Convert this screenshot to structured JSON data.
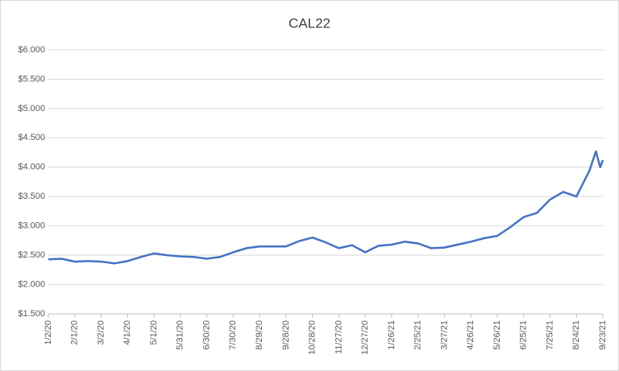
{
  "chart_data": {
    "type": "line",
    "title": "CAL22",
    "x": [
      "1/2/20",
      "1/17/20",
      "2/1/20",
      "2/16/20",
      "3/2/20",
      "3/17/20",
      "4/1/20",
      "4/16/20",
      "5/1/20",
      "5/16/20",
      "5/31/20",
      "6/15/20",
      "6/30/20",
      "7/15/20",
      "7/30/20",
      "8/14/20",
      "8/29/20",
      "9/13/20",
      "9/28/20",
      "10/13/20",
      "10/28/20",
      "11/12/20",
      "11/27/20",
      "12/12/20",
      "12/27/20",
      "1/11/21",
      "1/26/21",
      "2/10/21",
      "2/25/21",
      "3/12/21",
      "3/27/21",
      "4/11/21",
      "4/26/21",
      "5/11/21",
      "5/26/21",
      "6/10/21",
      "6/25/21",
      "7/10/21",
      "7/25/21",
      "8/9/21",
      "8/24/21",
      "9/8/21",
      "9/15/21",
      "9/20/21",
      "9/23/21"
    ],
    "values": [
      2.43,
      2.44,
      2.39,
      2.4,
      2.39,
      2.36,
      2.4,
      2.47,
      2.53,
      2.5,
      2.48,
      2.47,
      2.44,
      2.47,
      2.55,
      2.62,
      2.65,
      2.65,
      2.65,
      2.74,
      2.8,
      2.72,
      2.62,
      2.67,
      2.55,
      2.66,
      2.68,
      2.73,
      2.7,
      2.62,
      2.63,
      2.68,
      2.73,
      2.79,
      2.83,
      2.98,
      3.15,
      3.22,
      3.45,
      3.58,
      3.5,
      3.95,
      4.27,
      4.0,
      4.12
    ],
    "color": "#4472c4",
    "xlim": [
      "1/2/20",
      "9/23/21"
    ],
    "xticks": [
      "1/2/20",
      "2/1/20",
      "3/2/20",
      "4/1/20",
      "5/1/20",
      "5/31/20",
      "6/30/20",
      "7/30/20",
      "8/29/20",
      "9/28/20",
      "10/28/20",
      "11/27/20",
      "12/27/20",
      "1/26/21",
      "2/25/21",
      "3/27/21",
      "4/26/21",
      "5/26/21",
      "6/25/21",
      "7/25/21",
      "8/24/21",
      "9/23/21"
    ],
    "ylim": [
      1.5,
      6
    ],
    "yticks": [
      {
        "value": 1.5,
        "label": "$1.500"
      },
      {
        "value": 2,
        "label": "$2.000"
      },
      {
        "value": 2.5,
        "label": "$2.500"
      },
      {
        "value": 3,
        "label": "$3.000"
      },
      {
        "value": 3.5,
        "label": "$3.500"
      },
      {
        "value": 4,
        "label": "$4.000"
      },
      {
        "value": 4.5,
        "label": "$4.500"
      },
      {
        "value": 5,
        "label": "$5.000"
      },
      {
        "value": 5.5,
        "label": "$5.500"
      },
      {
        "value": 6,
        "label": "$6.000"
      }
    ],
    "grid": true
  }
}
